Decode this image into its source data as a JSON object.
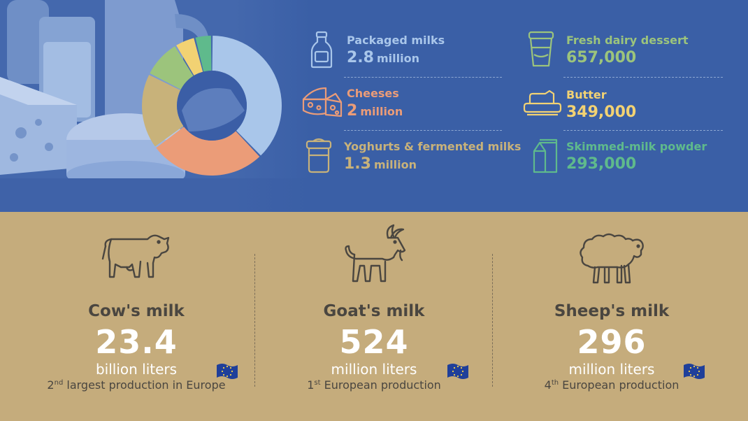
{
  "colors": {
    "top_bg": "#3a5fa6",
    "bottom_bg": "#c5ac7c",
    "packaged": "#a9c6ea",
    "cheeses": "#eb9c78",
    "yoghurts": "#c8b27a",
    "dessert": "#9cc47c",
    "butter": "#f2d273",
    "powder": "#5fba8c",
    "dark_text": "#4a4640"
  },
  "chart_data": {
    "type": "pie",
    "donut": true,
    "categories": [
      "Packaged milks",
      "Cheeses",
      "Yoghurts & fermented milks",
      "Fresh dairy dessert",
      "Butter",
      "Skimmed-milk powder"
    ],
    "values": [
      2800000,
      2000000,
      1300000,
      657000,
      349000,
      293000
    ]
  },
  "products": [
    {
      "label": "Packaged milks",
      "number": "2.8",
      "unit": "million",
      "color": "#a9c6ea",
      "icon": "milk-bottle-icon"
    },
    {
      "label": "Cheeses",
      "number": "2",
      "unit": "million",
      "color": "#eb9c78",
      "icon": "cheese-icon"
    },
    {
      "label": "Yoghurts & fermented milks",
      "number": "1.3",
      "unit": "million",
      "color": "#c8b27a",
      "icon": "yoghurt-jar-icon"
    },
    {
      "label": "Fresh dairy dessert",
      "number": "657,000",
      "unit": "",
      "color": "#9cc47c",
      "icon": "dessert-cup-icon"
    },
    {
      "label": "Butter",
      "number": "349,000",
      "unit": "",
      "color": "#f2d273",
      "icon": "butter-dish-icon"
    },
    {
      "label": "Skimmed-milk powder",
      "number": "293,000",
      "unit": "",
      "color": "#5fba8c",
      "icon": "milk-carton-icon"
    }
  ],
  "animals": [
    {
      "name": "Cow's milk",
      "value": "23.4",
      "unit": "billion liters",
      "rank_num": "2",
      "rank_sup": "nd",
      "rank_text": " largest production in Europe",
      "icon": "cow-icon"
    },
    {
      "name": "Goat's milk",
      "value": "524",
      "unit": "million liters",
      "rank_num": "1",
      "rank_sup": "st",
      "rank_text": " European production",
      "icon": "goat-icon"
    },
    {
      "name": "Sheep's milk",
      "value": "296",
      "unit": "million liters",
      "rank_num": "4",
      "rank_sup": "th",
      "rank_text": " European production",
      "icon": "sheep-icon"
    }
  ]
}
